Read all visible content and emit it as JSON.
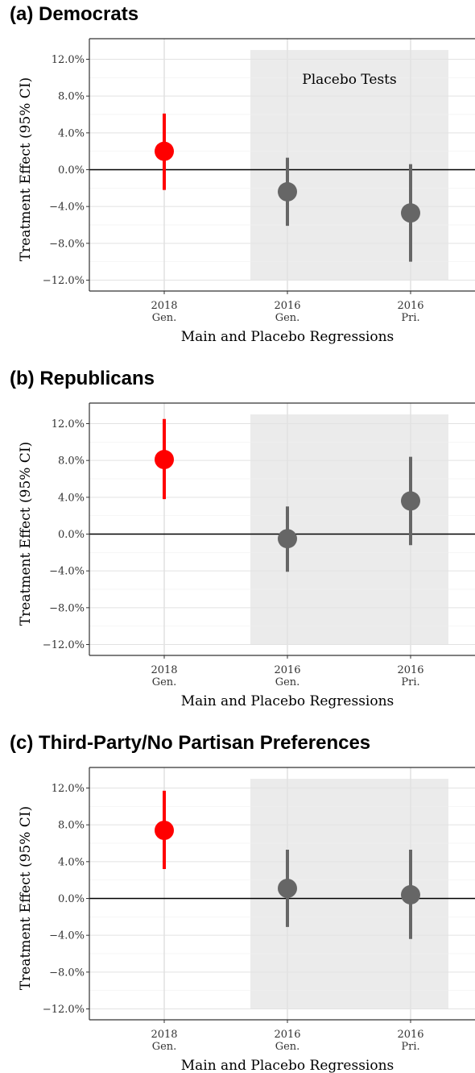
{
  "chart_data": [
    {
      "type": "scatter",
      "title": "(a) Democrats",
      "xlabel": "Main and Placebo Regressions",
      "ylabel": "Treatment Effect (95% CI)",
      "categories": [
        [
          "2018",
          "Gen."
        ],
        [
          "2016",
          "Gen."
        ],
        [
          "2016",
          "Pri."
        ]
      ],
      "y_ticks": [
        12,
        8,
        4,
        0,
        -4,
        -8,
        -12
      ],
      "y_tick_labels": [
        "12.0%",
        "8.0%",
        "4.0%",
        "0.0%",
        "−4.0%",
        "−8.0%",
        "−12.0%"
      ],
      "ylim": [
        -13,
        14
      ],
      "estimates": [
        2.0,
        -2.4,
        -4.7
      ],
      "ci_low": [
        -2.2,
        -6.1,
        -10.0
      ],
      "ci_high": [
        6.1,
        1.3,
        0.6
      ],
      "point_colors": [
        "#ff0000",
        "#666666",
        "#666666"
      ],
      "shaded_region": {
        "label": "Placebo Tests",
        "y_range": [
          -12,
          13
        ]
      },
      "reference_line": 0,
      "grid": true
    },
    {
      "type": "scatter",
      "title": "(b) Republicans",
      "xlabel": "Main and Placebo Regressions",
      "ylabel": "Treatment Effect (95% CI)",
      "categories": [
        [
          "2018",
          "Gen."
        ],
        [
          "2016",
          "Gen."
        ],
        [
          "2016",
          "Pri."
        ]
      ],
      "y_ticks": [
        12,
        8,
        4,
        0,
        -4,
        -8,
        -12
      ],
      "y_tick_labels": [
        "12.0%",
        "8.0%",
        "4.0%",
        "0.0%",
        "−4.0%",
        "−8.0%",
        "−12.0%"
      ],
      "ylim": [
        -13,
        14
      ],
      "estimates": [
        8.1,
        -0.5,
        3.6
      ],
      "ci_low": [
        3.8,
        -4.1,
        -1.2
      ],
      "ci_high": [
        12.5,
        3.0,
        8.4
      ],
      "point_colors": [
        "#ff0000",
        "#666666",
        "#666666"
      ],
      "shaded_region": {
        "label": "",
        "y_range": [
          -12,
          13
        ]
      },
      "reference_line": 0,
      "grid": true
    },
    {
      "type": "scatter",
      "title": "(c) Third-Party/No Partisan Preferences",
      "xlabel": "Main and Placebo Regressions",
      "ylabel": "Treatment Effect (95% CI)",
      "categories": [
        [
          "2018",
          "Gen."
        ],
        [
          "2016",
          "Gen."
        ],
        [
          "2016",
          "Pri."
        ]
      ],
      "y_ticks": [
        12,
        8,
        4,
        0,
        -4,
        -8,
        -12
      ],
      "y_tick_labels": [
        "12.0%",
        "8.0%",
        "4.0%",
        "0.0%",
        "−4.0%",
        "−8.0%",
        "−12.0%"
      ],
      "ylim": [
        -13,
        14
      ],
      "estimates": [
        7.4,
        1.1,
        0.4
      ],
      "ci_low": [
        3.2,
        -3.1,
        -4.4
      ],
      "ci_high": [
        11.7,
        5.3,
        5.3
      ],
      "point_colors": [
        "#ff0000",
        "#666666",
        "#666666"
      ],
      "shaded_region": {
        "label": "",
        "y_range": [
          -12,
          13
        ]
      },
      "reference_line": 0,
      "grid": true
    }
  ]
}
